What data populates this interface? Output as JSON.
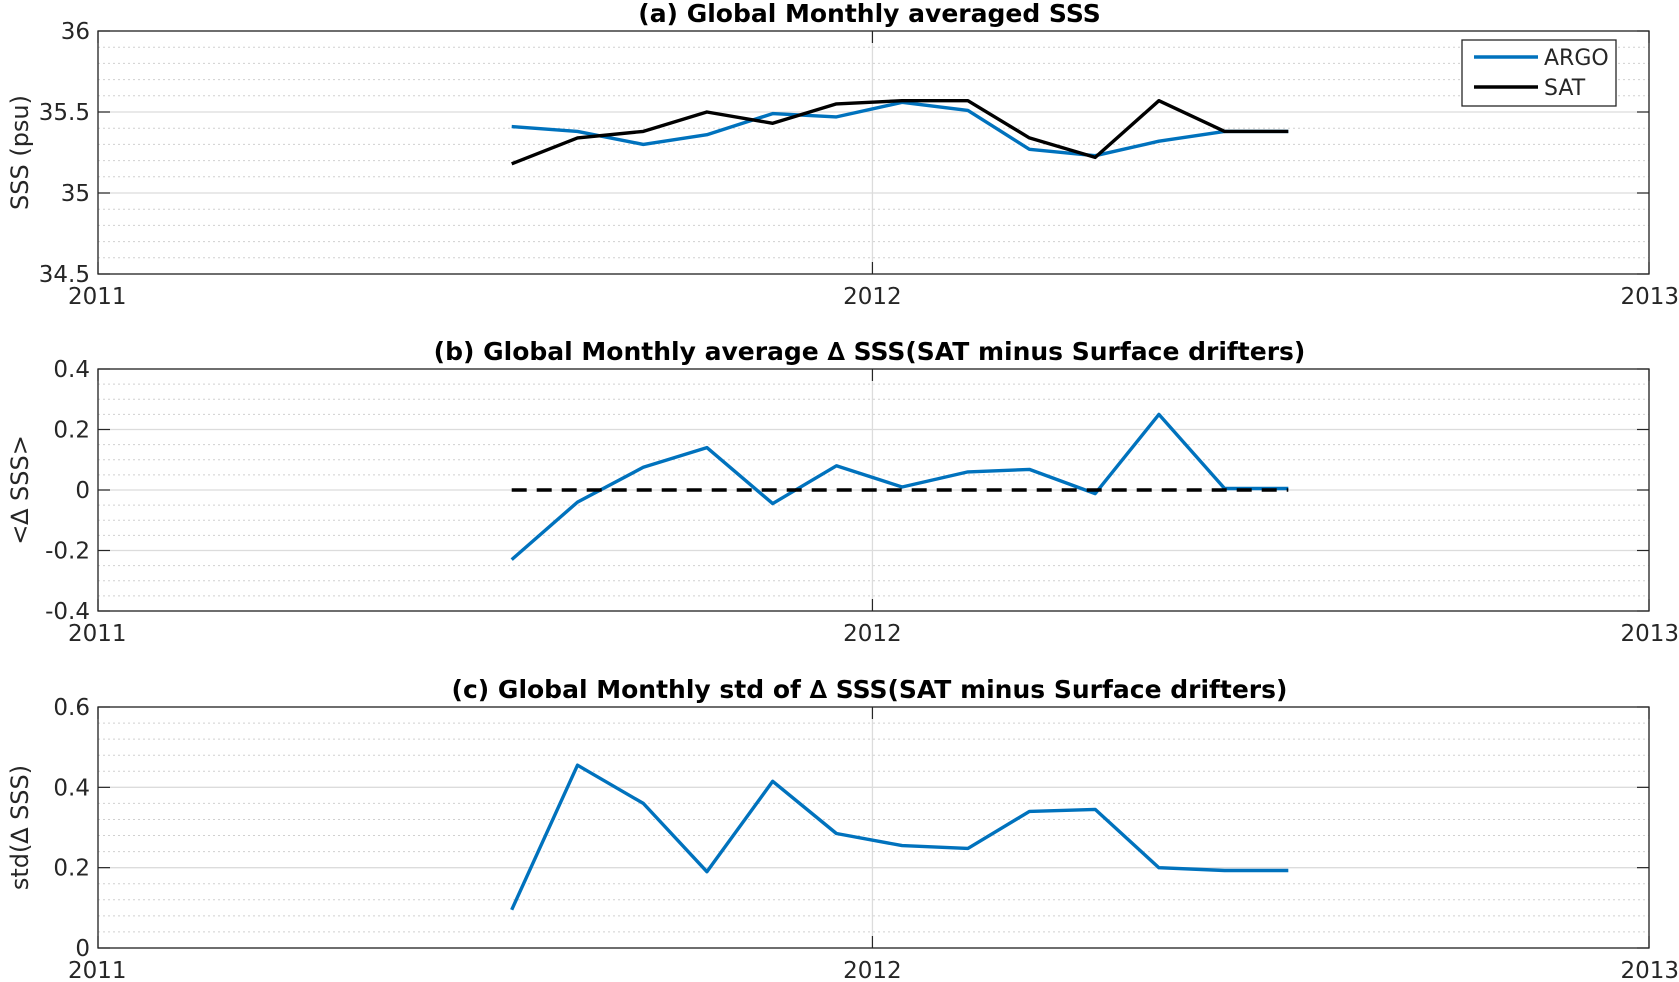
{
  "chart_data": [
    {
      "type": "line",
      "title": "(a) Global Monthly averaged SSS",
      "ylabel": "SSS (psu)",
      "xlim": [
        "2011-01-01",
        "2013-01-01"
      ],
      "ylim": [
        34.5,
        36
      ],
      "x_ticks": [
        "2011",
        "2012",
        "2013"
      ],
      "y_ticks": [
        "34.5",
        "35",
        "35.5",
        "36"
      ],
      "y_tick_values": [
        34.5,
        35,
        35.5,
        36
      ],
      "y_minor_step": 0.1,
      "grid": true,
      "legend_position": "top-right",
      "x": [
        "2011-07-15",
        "2011-08-15",
        "2011-09-15",
        "2011-10-15",
        "2011-11-15",
        "2011-12-15",
        "2012-01-15",
        "2012-02-15",
        "2012-03-15",
        "2012-04-15",
        "2012-05-15",
        "2012-06-15",
        "2012-07-15"
      ],
      "series": [
        {
          "name": "ARGO",
          "color": "#0072BD",
          "dashed": false,
          "values": [
            35.41,
            35.38,
            35.3,
            35.36,
            35.49,
            35.47,
            35.56,
            35.51,
            35.27,
            35.23,
            35.32,
            35.38,
            35.38
          ]
        },
        {
          "name": "SAT",
          "color": "#000000",
          "dashed": false,
          "values": [
            35.18,
            35.34,
            35.38,
            35.5,
            35.43,
            35.55,
            35.57,
            35.57,
            35.34,
            35.22,
            35.57,
            35.38,
            35.38
          ]
        }
      ]
    },
    {
      "type": "line",
      "title": "(b) Global Monthly average ∆ SSS(SAT minus Surface drifters)",
      "ylabel": "<∆ SSS>",
      "xlim": [
        "2011-01-01",
        "2013-01-01"
      ],
      "ylim": [
        -0.4,
        0.4
      ],
      "x_ticks": [
        "2011",
        "2012",
        "2013"
      ],
      "y_ticks": [
        "-0.4",
        "-0.2",
        "0",
        "0.2",
        "0.4"
      ],
      "y_tick_values": [
        -0.4,
        -0.2,
        0,
        0.2,
        0.4
      ],
      "y_minor_step": 0.05,
      "grid": true,
      "x": [
        "2011-07-15",
        "2011-08-15",
        "2011-09-15",
        "2011-10-15",
        "2011-11-15",
        "2011-12-15",
        "2012-01-15",
        "2012-02-15",
        "2012-03-15",
        "2012-04-15",
        "2012-05-15",
        "2012-06-15",
        "2012-07-15"
      ],
      "series": [
        {
          "color": "#0072BD",
          "dashed": false,
          "values": [
            -0.23,
            -0.04,
            0.075,
            0.14,
            -0.045,
            0.08,
            0.01,
            0.06,
            0.068,
            -0.012,
            0.25,
            0.005,
            0.005
          ]
        },
        {
          "color": "#000000",
          "dashed": true,
          "values": [
            0,
            0,
            0,
            0,
            0,
            0,
            0,
            0,
            0,
            0,
            0,
            0,
            0
          ]
        }
      ]
    },
    {
      "type": "line",
      "title": "(c) Global Monthly std of ∆ SSS(SAT minus Surface drifters)",
      "ylabel": "std(∆ SSS)",
      "xlim": [
        "2011-01-01",
        "2013-01-01"
      ],
      "ylim": [
        0,
        0.6
      ],
      "x_ticks": [
        "2011",
        "2012",
        "2013"
      ],
      "y_ticks": [
        "0",
        "0.2",
        "0.4",
        "0.6"
      ],
      "y_tick_values": [
        0,
        0.2,
        0.4,
        0.6
      ],
      "y_minor_step": 0.04,
      "grid": true,
      "x": [
        "2011-07-15",
        "2011-08-15",
        "2011-09-15",
        "2011-10-15",
        "2011-11-15",
        "2011-12-15",
        "2012-01-15",
        "2012-02-15",
        "2012-03-15",
        "2012-04-15",
        "2012-05-15",
        "2012-06-15",
        "2012-07-15"
      ],
      "series": [
        {
          "color": "#0072BD",
          "dashed": false,
          "values": [
            0.095,
            0.455,
            0.36,
            0.19,
            0.415,
            0.285,
            0.255,
            0.248,
            0.34,
            0.345,
            0.2,
            0.193,
            0.193
          ]
        }
      ]
    }
  ]
}
